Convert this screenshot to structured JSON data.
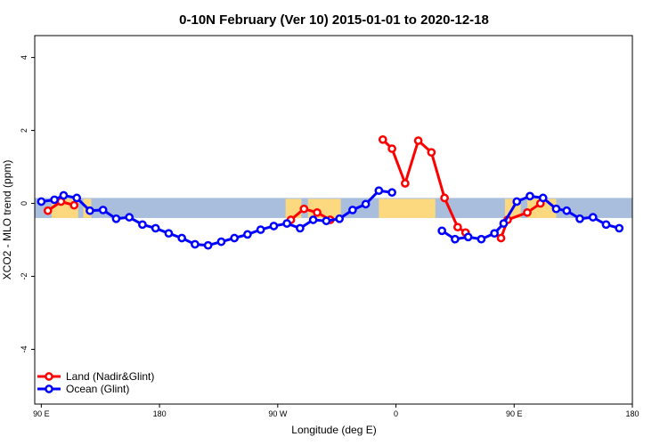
{
  "chart_data": {
    "type": "line",
    "title": "0-10N February (Ver 10)   2015-01-01 to 2020-12-18",
    "xlabel": "Longitude (deg E)",
    "ylabel": "XCO2 - MLO trend (ppm)",
    "xlim": [
      -5,
      450
    ],
    "ylim": [
      -5.5,
      4.6
    ],
    "x_ticks": [
      {
        "value": 0,
        "label": "90 E"
      },
      {
        "value": 90,
        "label": "180"
      },
      {
        "value": 180,
        "label": "90 W"
      },
      {
        "value": 270,
        "label": "0"
      },
      {
        "value": 360,
        "label": "90 E"
      },
      {
        "value": 450,
        "label": "180"
      }
    ],
    "y_ticks": [
      {
        "value": -4,
        "label": "-4"
      },
      {
        "value": -2,
        "label": "-2"
      },
      {
        "value": 0,
        "label": "0"
      },
      {
        "value": 2,
        "label": "2"
      },
      {
        "value": 4,
        "label": "4"
      }
    ],
    "grid": false,
    "legend_position": "bottom-left",
    "background_band": {
      "y_range": [
        -0.4,
        0.15
      ],
      "ocean_color": "#a9bedd",
      "land_color": "#fcd97f"
    },
    "series": [
      {
        "name": "Land (Nadir&Glint)",
        "color": "#ff0000",
        "segments": [
          {
            "x": [
              5,
              15,
              25
            ],
            "y": [
              -0.2,
              0.05,
              -0.05
            ]
          },
          {
            "x": [
              190,
              200,
              210,
              220
            ],
            "y": [
              -0.45,
              -0.15,
              -0.25,
              -0.45
            ]
          },
          {
            "x": [
              260,
              267,
              277,
              287,
              297,
              307,
              317,
              323
            ],
            "y": [
              1.75,
              1.5,
              0.55,
              1.72,
              1.4,
              0.15,
              -0.65,
              -0.8
            ]
          },
          {
            "x": [
              350,
              355,
              370,
              380
            ],
            "y": [
              -0.95,
              -0.45,
              -0.25,
              0.0
            ]
          }
        ]
      },
      {
        "name": "Ocean (Glint)",
        "color": "#0000ff",
        "segments": [
          {
            "x": [
              0,
              10,
              17,
              27,
              37,
              47,
              57,
              67,
              77,
              87,
              97,
              107,
              117,
              127,
              137,
              147,
              157,
              167,
              177,
              187,
              197,
              207,
              217,
              227,
              237,
              247,
              257,
              267
            ],
            "y": [
              0.05,
              0.1,
              0.22,
              0.15,
              -0.2,
              -0.18,
              -0.42,
              -0.38,
              -0.58,
              -0.68,
              -0.82,
              -0.95,
              -1.12,
              -1.15,
              -1.05,
              -0.95,
              -0.85,
              -0.72,
              -0.62,
              -0.55,
              -0.68,
              -0.45,
              -0.48,
              -0.42,
              -0.18,
              -0.02,
              0.35,
              0.3
            ]
          },
          {
            "x": [
              305,
              315,
              325,
              335,
              345,
              352,
              362,
              372,
              382,
              392,
              400,
              410,
              420,
              430,
              440
            ],
            "y": [
              -0.75,
              -0.98,
              -0.92,
              -0.98,
              -0.82,
              -0.55,
              0.05,
              0.2,
              0.15,
              -0.15,
              -0.2,
              -0.42,
              -0.38,
              -0.58,
              -0.68
            ]
          }
        ]
      }
    ]
  }
}
